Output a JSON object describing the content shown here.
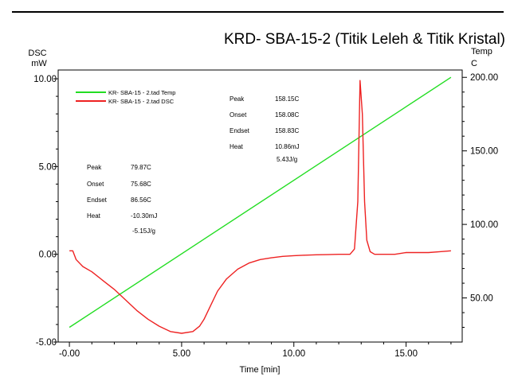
{
  "chart_data": {
    "type": "line",
    "title": "KRD- SBA-15-2 (Titik Leleh & Titik Kristal)",
    "xlabel": "Time [min]",
    "ylabel_left": [
      "DSC",
      "mW"
    ],
    "ylabel_right": [
      "Temp",
      "C"
    ],
    "xlim": [
      -0.5,
      17.5
    ],
    "ylim_left": [
      -5.0,
      10.5
    ],
    "ylim_right": [
      20,
      205
    ],
    "x_ticks": [
      "-0.00",
      "5.00",
      "10.00",
      "15.00"
    ],
    "y_left_ticks": [
      "-5.00",
      "0.00",
      "5.00",
      "10.00"
    ],
    "y_right_ticks": [
      "50.00",
      "100.00",
      "150.00",
      "200.00"
    ],
    "series": [
      {
        "name": "KR- SBA-15 - 2.tad  Temp",
        "axis": "right",
        "color": "#22dd22",
        "x": [
          0.0,
          17.0
        ],
        "y": [
          30.0,
          200.0
        ]
      },
      {
        "name": "KR- SBA-15 - 2.tad  DSC",
        "axis": "left",
        "color": "#ee2222",
        "x": [
          0.0,
          0.15,
          0.3,
          0.6,
          1.0,
          1.5,
          2.0,
          2.5,
          3.0,
          3.5,
          4.0,
          4.5,
          5.0,
          5.5,
          5.8,
          6.0,
          6.3,
          6.6,
          7.0,
          7.5,
          8.0,
          8.5,
          9.0,
          9.5,
          10.0,
          10.5,
          11.0,
          11.5,
          12.0,
          12.5,
          12.7,
          12.85,
          12.95,
          13.05,
          13.15,
          13.25,
          13.4,
          13.6,
          14.0,
          14.5,
          15.0,
          15.5,
          16.0,
          16.5,
          17.0
        ],
        "y": [
          0.2,
          0.2,
          -0.3,
          -0.7,
          -1.0,
          -1.5,
          -2.0,
          -2.6,
          -3.2,
          -3.7,
          -4.1,
          -4.4,
          -4.5,
          -4.4,
          -4.1,
          -3.7,
          -2.9,
          -2.1,
          -1.4,
          -0.85,
          -0.5,
          -0.3,
          -0.2,
          -0.12,
          -0.08,
          -0.05,
          -0.03,
          -0.02,
          0.0,
          0.0,
          0.3,
          3.0,
          9.9,
          8.0,
          3.0,
          0.8,
          0.15,
          0.0,
          0.0,
          0.0,
          0.1,
          0.1,
          0.1,
          0.15,
          0.2
        ]
      }
    ],
    "legend_position": "top-left",
    "annotations": [
      {
        "peak_label": "Peak",
        "peak_value": "79.87C",
        "onset_label": "Onset",
        "onset_value": "75.68C",
        "endset_label": "Endset",
        "endset_value": "86.56C",
        "heat_label": "Heat",
        "heat_value": "-10.30mJ",
        "heat_value2": "-5.15J/g"
      },
      {
        "peak_label": "Peak",
        "peak_value": "158.15C",
        "onset_label": "Onset",
        "onset_value": "158.08C",
        "endset_label": "Endset",
        "endset_value": "158.83C",
        "heat_label": "Heat",
        "heat_value": "10.86mJ",
        "heat_value2": "5.43J/g"
      }
    ],
    "grid": false
  }
}
